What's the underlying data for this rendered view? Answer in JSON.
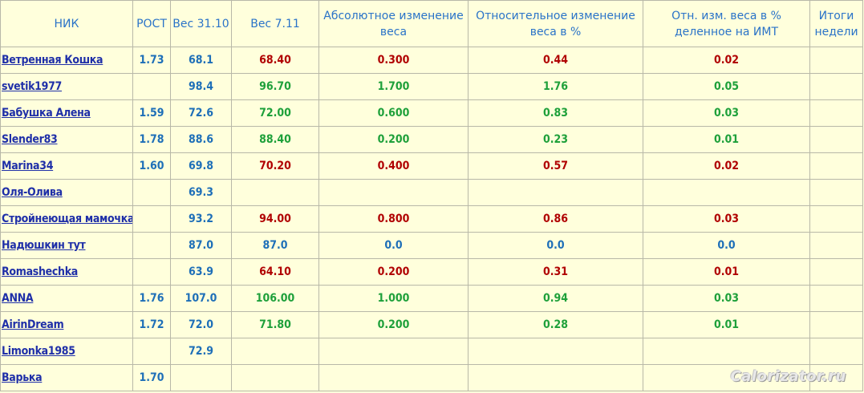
{
  "headers": {
    "nick": "НИК",
    "height": "РОСТ",
    "w1": "Вес 31.10",
    "w2": "Вес 7.11",
    "abs": "Абсолютное изменение веса",
    "rel": "Относительное  изменение веса в %",
    "bmi": "Отн.  изм. веса в % деленное на ИМТ",
    "total": "Итоги недели"
  },
  "colors": {
    "header": "#2a73c8",
    "gain": "#b00000",
    "loss": "#1ea03a",
    "neutral": "#1e6fb8",
    "link": "#1f2fa8",
    "background": "#ffffdc"
  },
  "rows": [
    {
      "nick": "Ветренная Кошка",
      "height": "1.73",
      "w1": "68.1",
      "w2": "68.40",
      "abs": "0.300",
      "rel": "0.44",
      "bmi": "0.02",
      "status": "red"
    },
    {
      "nick": "svetik1977",
      "height": "",
      "w1": "98.4",
      "w2": "96.70",
      "abs": "1.700",
      "rel": "1.76",
      "bmi": "0.05",
      "status": "green"
    },
    {
      "nick": "Бабушка Алена",
      "height": "1.59",
      "w1": "72.6",
      "w2": "72.00",
      "abs": "0.600",
      "rel": "0.83",
      "bmi": "0.03",
      "status": "green"
    },
    {
      "nick": "Slender83",
      "height": "1.78",
      "w1": "88.6",
      "w2": "88.40",
      "abs": "0.200",
      "rel": "0.23",
      "bmi": "0.01",
      "status": "green"
    },
    {
      "nick": "Marina34",
      "height": "1.60",
      "w1": "69.8",
      "w2": "70.20",
      "abs": "0.400",
      "rel": "0.57",
      "bmi": "0.02",
      "status": "red"
    },
    {
      "nick": "Оля-Олива",
      "height": "",
      "w1": "69.3",
      "w2": "",
      "abs": "",
      "rel": "",
      "bmi": "",
      "status": "none"
    },
    {
      "nick": "Стройнеющая мамочка",
      "height": "",
      "w1": "93.2",
      "w2": "94.00",
      "abs": "0.800",
      "rel": "0.86",
      "bmi": "0.03",
      "status": "red"
    },
    {
      "nick": "Надюшкин тут",
      "height": "",
      "w1": "87.0",
      "w2": "87.0",
      "abs": "0.0",
      "rel": "0.0",
      "bmi": "0.0",
      "status": "blue"
    },
    {
      "nick": "Romashechka",
      "height": "",
      "w1": "63.9",
      "w2": "64.10",
      "abs": "0.200",
      "rel": "0.31",
      "bmi": "0.01",
      "status": "red"
    },
    {
      "nick": "ANNA",
      "height": "1.76",
      "w1": "107.0",
      "w2": "106.00",
      "abs": "1.000",
      "rel": "0.94",
      "bmi": "0.03",
      "status": "green"
    },
    {
      "nick": "AirinDream",
      "height": "1.72",
      "w1": "72.0",
      "w2": "71.80",
      "abs": "0.200",
      "rel": "0.28",
      "bmi": "0.01",
      "status": "green"
    },
    {
      "nick": "Limonka1985",
      "height": "",
      "w1": "72.9",
      "w2": "",
      "abs": "",
      "rel": "",
      "bmi": "",
      "status": "none"
    },
    {
      "nick": "Варька",
      "height": "1.70",
      "w1": "",
      "w2": "",
      "abs": "",
      "rel": "",
      "bmi": "",
      "status": "none"
    }
  ],
  "watermark": "Calorizator.ru"
}
